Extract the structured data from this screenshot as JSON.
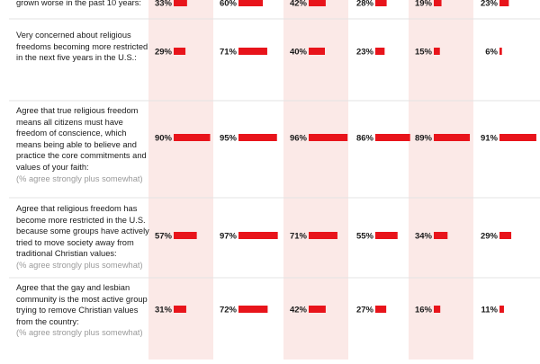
{
  "chart_data": {
    "type": "bar",
    "title": "",
    "xlabel": "",
    "ylabel": "",
    "xlim": [
      0,
      100
    ],
    "unit_suffix": "%",
    "series_count": 6,
    "colors": {
      "bar": "#e8141b",
      "band": "#fbe9e7",
      "rule": "#e3e3e3",
      "text": "#1a1a1a",
      "note": "#9a9a9a"
    },
    "rows": [
      {
        "label": "grown worse in the past 10 years:",
        "note": "",
        "values": [
          33,
          60,
          42,
          28,
          19,
          23
        ]
      },
      {
        "label": "Very concerned about religious freedoms becoming more restricted in the next five years in the U.S.:",
        "note": "",
        "values": [
          29,
          71,
          40,
          23,
          15,
          6
        ]
      },
      {
        "label": "Agree that true religious freedom means all citizens must have freedom of conscience, which means being able to believe and practice the core commitments and values of your faith:",
        "note": "(% agree strongly plus somewhat)",
        "values": [
          90,
          95,
          96,
          86,
          89,
          91
        ]
      },
      {
        "label": "Agree that religious freedom has become more restricted in the U.S. because some groups have actively tried to move society away from traditional Christian values:",
        "note": "(% agree strongly plus somewhat)",
        "values": [
          57,
          97,
          71,
          55,
          34,
          29
        ]
      },
      {
        "label": "Agree that the gay and lesbian community is the most active group trying to remove Christian values from the country:",
        "note": "(% agree strongly plus somewhat)",
        "values": [
          31,
          72,
          42,
          27,
          16,
          11
        ]
      }
    ]
  }
}
